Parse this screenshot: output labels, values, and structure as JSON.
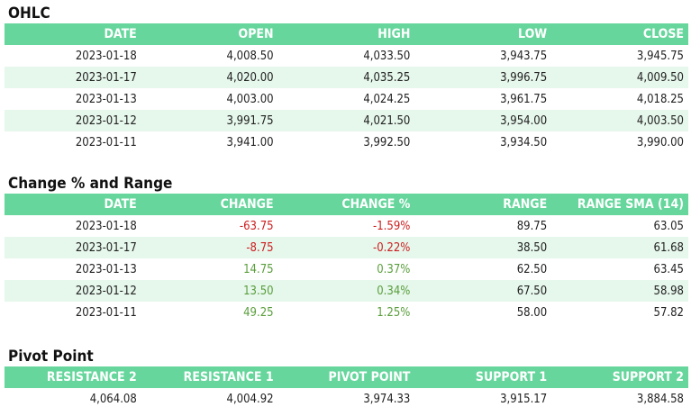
{
  "ohlc": {
    "title": "OHLC",
    "headers": [
      "DATE",
      "OPEN",
      "HIGH",
      "LOW",
      "CLOSE"
    ],
    "rows": [
      [
        "2023-01-18",
        "4,008.50",
        "4,033.50",
        "3,943.75",
        "3,945.75"
      ],
      [
        "2023-01-17",
        "4,020.00",
        "4,035.25",
        "3,996.75",
        "4,009.50"
      ],
      [
        "2023-01-13",
        "4,003.00",
        "4,024.25",
        "3,961.75",
        "4,018.25"
      ],
      [
        "2023-01-12",
        "3,991.75",
        "4,021.50",
        "3,954.00",
        "4,003.50"
      ],
      [
        "2023-01-11",
        "3,941.00",
        "3,992.50",
        "3,934.50",
        "3,990.00"
      ]
    ]
  },
  "change": {
    "title": "Change % and Range",
    "headers": [
      "DATE",
      "CHANGE",
      "CHANGE %",
      "RANGE",
      "RANGE SMA (14)"
    ],
    "rows": [
      [
        "2023-01-18",
        "-63.75",
        "-1.59%",
        "89.75",
        "63.05"
      ],
      [
        "2023-01-17",
        "-8.75",
        "-0.22%",
        "38.50",
        "61.68"
      ],
      [
        "2023-01-13",
        "14.75",
        "0.37%",
        "62.50",
        "63.45"
      ],
      [
        "2023-01-12",
        "13.50",
        "0.34%",
        "67.50",
        "58.98"
      ],
      [
        "2023-01-11",
        "49.25",
        "1.25%",
        "58.00",
        "57.82"
      ]
    ]
  },
  "pivot": {
    "title": "Pivot Point",
    "headers": [
      "RESISTANCE 2",
      "RESISTANCE 1",
      "PIVOT POINT",
      "SUPPORT 1",
      "SUPPORT 2"
    ],
    "rows": [
      [
        "4,064.08",
        "4,004.92",
        "3,974.33",
        "3,915.17",
        "3,884.58"
      ]
    ]
  },
  "colors": {
    "header_bg": "#66d69c",
    "alt_row_bg": "#e6f7ec",
    "negative": "#cc1f1f",
    "positive": "#5a9e3c"
  }
}
